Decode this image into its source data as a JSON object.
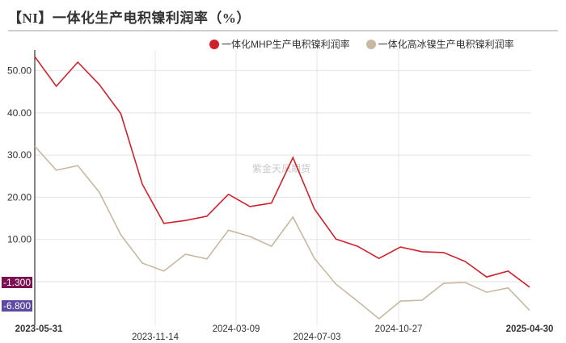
{
  "title": "【NI】一体化生产电积镍利润率（%）",
  "legend": [
    {
      "label": "一体化MHP生产电积镍利润率",
      "color": "#d0202a"
    },
    {
      "label": "一体化高冰镍生产电积镍利润率",
      "color": "#c8b8a2"
    }
  ],
  "watermark": "紫金天风期货",
  "last_value_badges": [
    {
      "text": "-1.300",
      "color": "#7d1052"
    },
    {
      "text": "-6.800",
      "color": "#5d4aa3"
    }
  ],
  "y_axis": {
    "ticks": [
      "50.00",
      "40.00",
      "30.00",
      "20.00",
      "10.00"
    ]
  },
  "x_axis": {
    "labels": [
      {
        "text": "2023-05-31",
        "bold": true
      },
      {
        "text": "2023-11-14",
        "bold": false
      },
      {
        "text": "2024-03-09",
        "bold": false
      },
      {
        "text": "2024-07-03",
        "bold": false
      },
      {
        "text": "2024-10-27",
        "bold": false
      },
      {
        "text": "2025-04-30",
        "bold": true
      }
    ]
  },
  "chart_data": {
    "type": "line",
    "title": "【NI】一体化生产电积镍利润率（%）",
    "xlabel": "",
    "ylabel": "%",
    "ylim": [
      -9,
      54
    ],
    "grid": true,
    "legend_position": "top-right",
    "x_tick_labels": [
      "2023-05-31",
      "2023-11-14",
      "2024-03-09",
      "2024-07-03",
      "2024-10-27",
      "2025-04-30"
    ],
    "y_tick_labels": [
      "10.00",
      "20.00",
      "30.00",
      "40.00",
      "50.00"
    ],
    "series": [
      {
        "name": "一体化MHP生产电积镍利润率",
        "color": "#d0202a",
        "values": [
          53.3,
          46.3,
          52.0,
          46.7,
          39.8,
          23.1,
          13.8,
          14.5,
          15.5,
          20.7,
          17.8,
          18.6,
          29.4,
          17.2,
          10.1,
          8.4,
          5.5,
          8.2,
          7.1,
          6.9,
          4.8,
          1.1,
          2.5,
          -1.3
        ]
      },
      {
        "name": "一体化高冰镍生产电积镍利润率",
        "color": "#c8b8a2",
        "values": [
          32.1,
          26.4,
          27.5,
          21.2,
          11.1,
          4.4,
          2.5,
          6.5,
          5.4,
          12.2,
          10.7,
          8.4,
          15.3,
          5.5,
          -0.6,
          -4.6,
          -8.8,
          -4.6,
          -4.4,
          -0.4,
          -0.2,
          -2.5,
          -1.5,
          -6.8
        ]
      }
    ],
    "last_values": [
      -1.3,
      -6.8
    ]
  }
}
